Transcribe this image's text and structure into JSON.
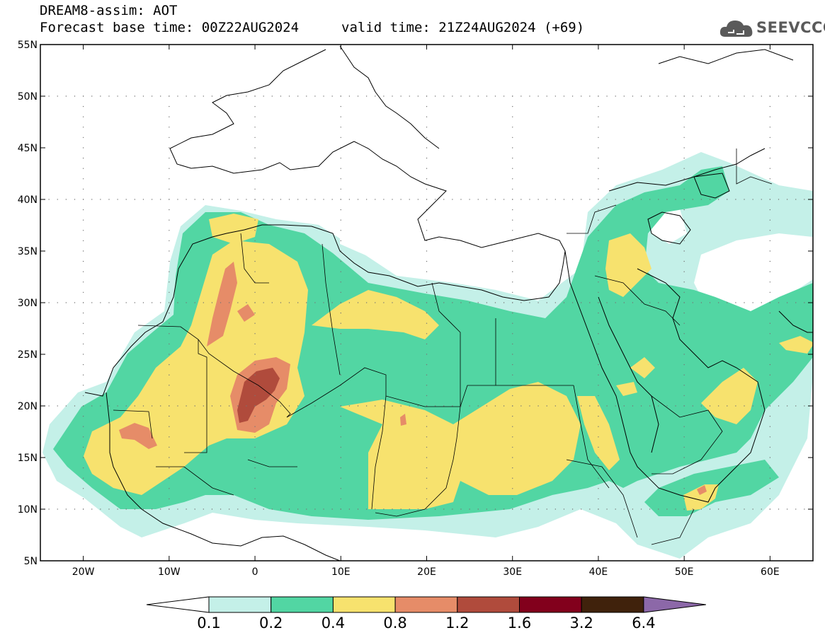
{
  "header": {
    "line1": "DREAM8-assim: AOT",
    "line2": "Forecast base time: 00Z22AUG2024",
    "line3": "valid time: 21Z24AUG2024 (+69)",
    "logo_text": "SEEVCCC"
  },
  "axes": {
    "lat_labels": [
      "55N",
      "50N",
      "45N",
      "40N",
      "35N",
      "30N",
      "25N",
      "20N",
      "15N",
      "10N",
      "5N"
    ],
    "lon_labels": [
      "20W",
      "10W",
      "0",
      "10E",
      "20E",
      "30E",
      "40E",
      "50E",
      "60E"
    ]
  },
  "colorbar": {
    "labels": [
      "0.1",
      "0.2",
      "0.4",
      "0.8",
      "1.2",
      "1.6",
      "3.2",
      "6.4"
    ],
    "colors": [
      "#ffffff",
      "#c4f0e8",
      "#52d6a3",
      "#f7e26e",
      "#e68c68",
      "#b04b3c",
      "#82001c",
      "#40220c",
      "#8c68a8"
    ]
  },
  "fields": {
    "c02": "#c4f0e8",
    "c04": "#52d6a3",
    "c08": "#f7e26e",
    "c12": "#e68c68",
    "c16": "#b04b3c"
  }
}
